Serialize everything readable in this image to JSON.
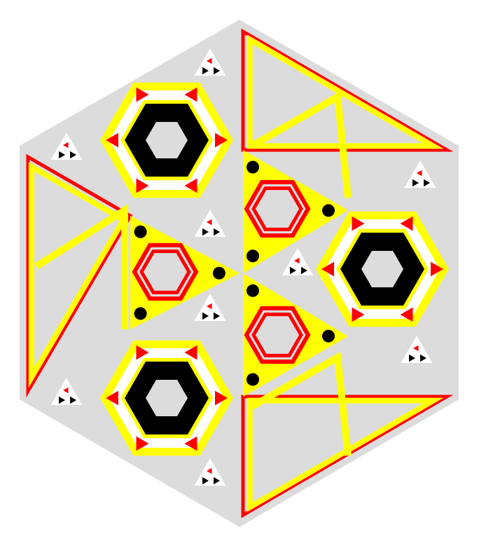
{
  "palette": {
    "background": "#ffffff",
    "light_gray": "#dcdcdc",
    "yellow": "#ffff00",
    "red": "#ff0000",
    "black": "#000000",
    "white": "#ffffff"
  },
  "motifs": {
    "black_hexagon_medallions": 3,
    "red_ring_hexagons": 3,
    "yellow_triangle_panels": 3,
    "small_triangle_clusters": 9
  }
}
